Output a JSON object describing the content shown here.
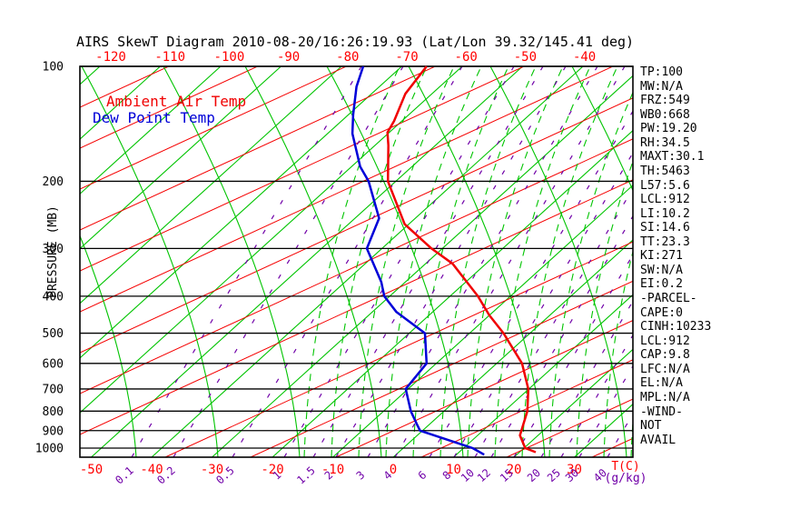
{
  "title": "AIRS SkewT Diagram 2010-08-20/16:26:19.93 (Lat/Lon 39.32/145.41 deg)",
  "legend": {
    "ambient": "Ambient Air Temp",
    "dew_point": "Dew Point Temp"
  },
  "axes": {
    "pressure_label": "PRESSURE (MB)",
    "pressure_ticks": [
      100,
      200,
      300,
      400,
      500,
      600,
      700,
      800,
      900,
      1000
    ],
    "top_temp_ticks": [
      -120,
      -110,
      -100,
      -90,
      -80,
      -70,
      -60,
      -50,
      -40
    ],
    "bottom_temp_ticks": [
      -50,
      -40,
      -30,
      -20,
      -10,
      0,
      10,
      20,
      30
    ],
    "temp_unit": "T(C)",
    "mixing_ratio_ticks": [
      0.1,
      0.2,
      0.5,
      1,
      1.5,
      2,
      3,
      4,
      6,
      8,
      10,
      12,
      15,
      20,
      25,
      30,
      40
    ],
    "mixing_ratio_unit": "(g/kg)"
  },
  "stats": [
    "TP:100",
    "MW:N/A",
    "FRZ:549",
    "WB0:668",
    "PW:19.20",
    "RH:34.5",
    "MAXT:30.1",
    "TH:5463",
    "L57:5.6",
    "LCL:912",
    "LI:10.2",
    "SI:14.6",
    "TT:23.3",
    "KI:271",
    "SW:N/A",
    "EI:0.2",
    "-PARCEL-",
    "CAPE:0",
    "CINH:10233",
    "LCL:912",
    "CAP:9.8",
    "LFC:N/A",
    "EL:N/A",
    "MPL:N/A",
    "-WIND-",
    "NOT",
    "AVAIL"
  ],
  "colors": {
    "isotherm_green": "#00c400",
    "adiabat_red": "#f50000",
    "mixing_purple": "#7000a8",
    "ambient_red": "#f00000",
    "dew_blue": "#0000d8",
    "axis_black": "#000000",
    "label_red": "#ff0000"
  },
  "chart_data": {
    "type": "line",
    "title": "AIRS SkewT Diagram 2010-08-20/16:26:19.93 (Lat/Lon 39.32/145.41 deg)",
    "xlabel": "Temperature (C), skewed",
    "ylabel": "Pressure (MB), log scale",
    "ylim": [
      100,
      1056
    ],
    "xlim_bottom_axis": [
      -50,
      40
    ],
    "grid": "skew-t lattice: isotherms, dry adiabats, moist adiabats, mixing-ratio lines, isobars",
    "legend_position": "top-left inside plot",
    "series": [
      {
        "name": "Ambient Air Temp",
        "color": "#f00000",
        "points_pressure_mb_temp_c": [
          [
            100,
            -65.9
          ],
          [
            118,
            -64.4
          ],
          [
            139,
            -61.3
          ],
          [
            149,
            -60.3
          ],
          [
            161,
            -57.8
          ],
          [
            200,
            -51.3
          ],
          [
            259,
            -40.7
          ],
          [
            300,
            -31.8
          ],
          [
            329,
            -25.5
          ],
          [
            400,
            -15.4
          ],
          [
            449,
            -10.0
          ],
          [
            500,
            -4.4
          ],
          [
            600,
            4.2
          ],
          [
            700,
            9.9
          ],
          [
            800,
            13.8
          ],
          [
            926,
            17.0
          ],
          [
            1000,
            20.2
          ],
          [
            1025,
            22.7
          ]
        ]
      },
      {
        "name": "Dew Point Temp",
        "color": "#0000d8",
        "points_pressure_mb_temp_c": [
          [
            100,
            -76.4
          ],
          [
            113,
            -73.8
          ],
          [
            134,
            -69.2
          ],
          [
            150,
            -65.9
          ],
          [
            183,
            -58.6
          ],
          [
            200,
            -54.5
          ],
          [
            250,
            -46.0
          ],
          [
            300,
            -42.5
          ],
          [
            367,
            -34.0
          ],
          [
            400,
            -30.9
          ],
          [
            440,
            -26.0
          ],
          [
            500,
            -17.4
          ],
          [
            600,
            -11.6
          ],
          [
            700,
            -10.4
          ],
          [
            800,
            -5.5
          ],
          [
            870,
            -1.9
          ],
          [
            900,
            -0.4
          ],
          [
            1000,
            11.5
          ],
          [
            1040,
            14.6
          ]
        ]
      }
    ]
  }
}
